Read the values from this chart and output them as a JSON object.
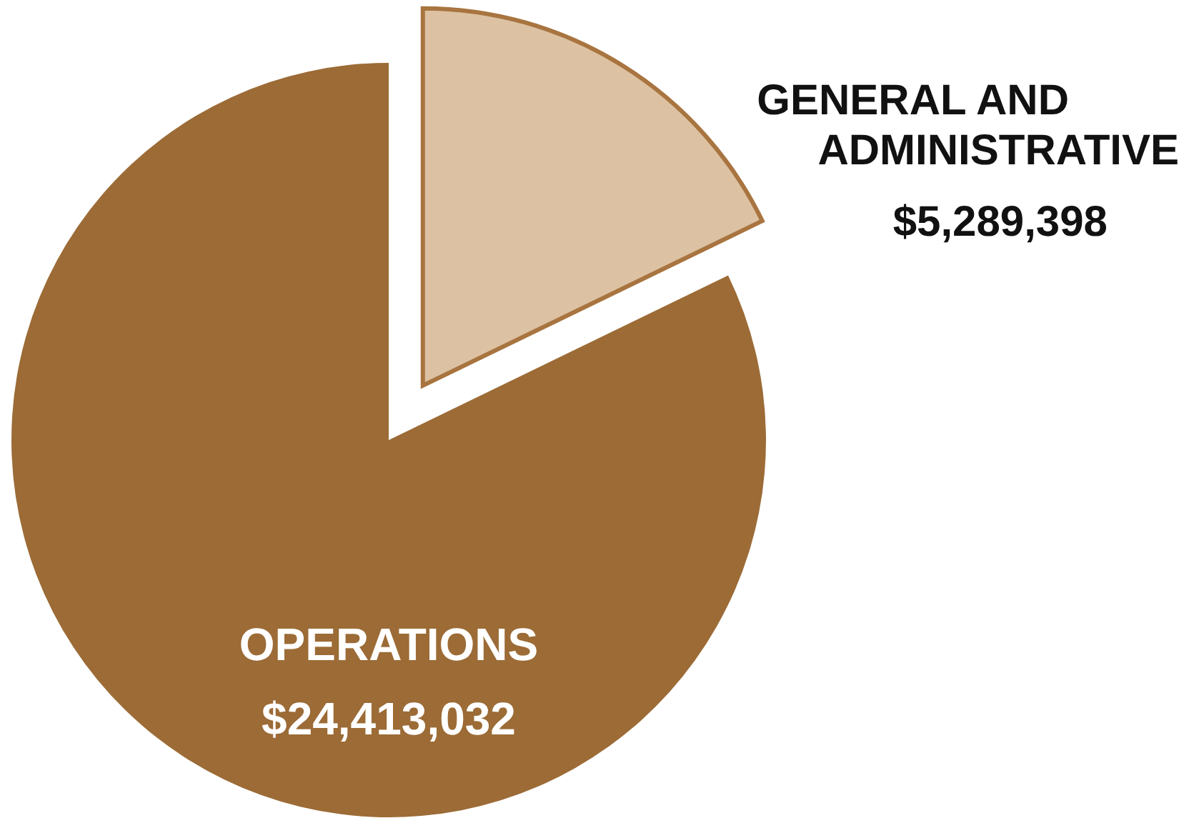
{
  "chart_data": {
    "type": "pie",
    "categories": [
      "OPERATIONS",
      "GENERAL AND ADMINISTRATIVE"
    ],
    "values": [
      24413032,
      5289398
    ],
    "colors": [
      "#9c6b36",
      "#dcc2a2"
    ],
    "value_labels": [
      "$24,413,032",
      "$5,289,398"
    ]
  }
}
